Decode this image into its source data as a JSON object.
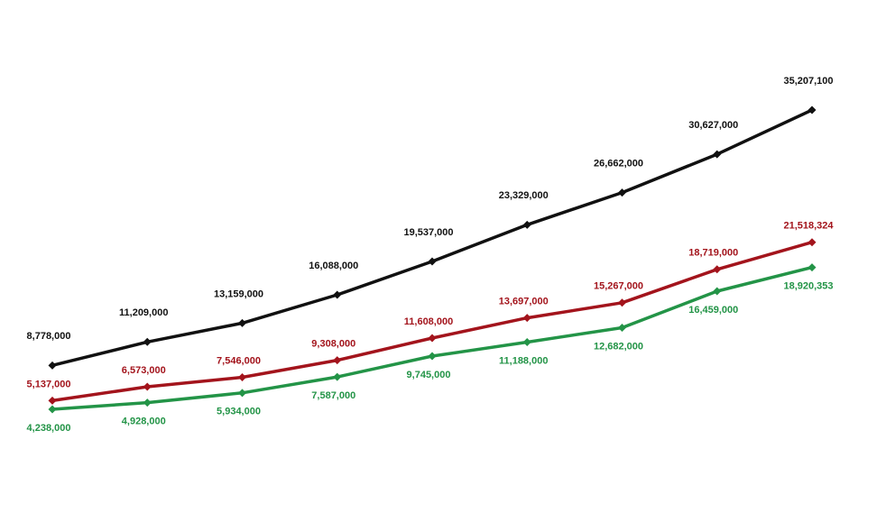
{
  "chart_data": {
    "type": "line",
    "categories": [
      null,
      null,
      null,
      null,
      null,
      null,
      null,
      null,
      null
    ],
    "series": [
      {
        "color": "#111111",
        "values": [
          8778000,
          11209000,
          13159000,
          16088000,
          19537000,
          23329000,
          26662000,
          30627000,
          35207100
        ],
        "value_labels": [
          "8,778,000",
          "11,209,000",
          "13,159,000",
          "16,088,000",
          "19,537,000",
          "23,329,000",
          "26,662,000",
          "30,627,000",
          "35,207,100"
        ]
      },
      {
        "color": "#a3141c",
        "values": [
          5137000,
          6573000,
          7546000,
          9308000,
          11608000,
          13697000,
          15267000,
          18719000,
          21518324
        ],
        "value_labels": [
          "5,137,000",
          "6,573,000",
          "7,546,000",
          "9,308,000",
          "11,608,000",
          "13,697,000",
          "15,267,000",
          "18,719,000",
          "21,518,324"
        ]
      },
      {
        "color": "#239447",
        "values": [
          4238000,
          4928000,
          5934000,
          7587000,
          9745000,
          11188000,
          12682000,
          16459000,
          18920353
        ],
        "value_labels": [
          "4,238,000",
          "4,928,000",
          "5,934,000",
          "7,587,000",
          "9,745,000",
          "11,188,000",
          "12,682,000",
          "16,459,000",
          "18,920,353"
        ]
      }
    ]
  }
}
